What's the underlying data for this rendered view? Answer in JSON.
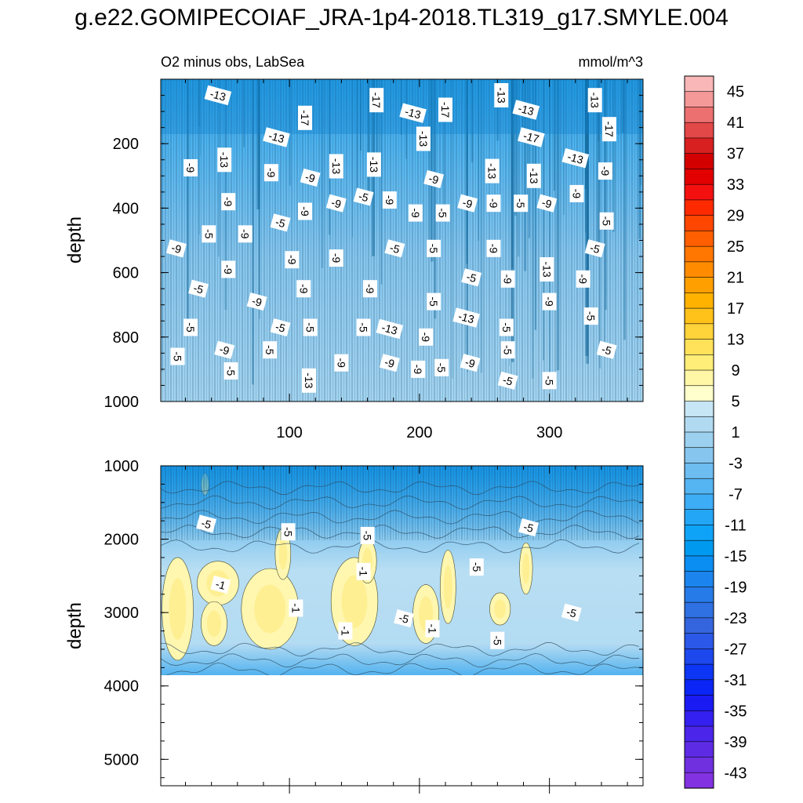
{
  "chart_data": {
    "type": "contour",
    "title": "g.e22.GOMIPECOIAF_JRA-1p4-2018.TL319_g17.SMYLE.004",
    "subtitle_left": "O2 minus obs, LabSea",
    "subtitle_right": "mmol/m^3",
    "panels": [
      {
        "name": "upper",
        "ylabel": "depth",
        "ylim": [
          0,
          1000
        ],
        "xlim": [
          1,
          372
        ],
        "yticks": [
          "200",
          "400",
          "600",
          "800",
          "1000"
        ],
        "xticks": [
          "100",
          "200",
          "300"
        ],
        "contour_labels": [
          {
            "x": 45,
            "y": 50,
            "text": "-13"
          },
          {
            "x": 112,
            "y": 120,
            "text": "-17"
          },
          {
            "x": 167,
            "y": 65,
            "text": "-17"
          },
          {
            "x": 195,
            "y": 105,
            "text": "-13"
          },
          {
            "x": 220,
            "y": 95,
            "text": "-17"
          },
          {
            "x": 263,
            "y": 50,
            "text": "-13"
          },
          {
            "x": 282,
            "y": 95,
            "text": "-13"
          },
          {
            "x": 335,
            "y": 65,
            "text": "-13"
          },
          {
            "x": 346,
            "y": 155,
            "text": "-17"
          },
          {
            "x": 90,
            "y": 180,
            "text": "-13"
          },
          {
            "x": 50,
            "y": 250,
            "text": "-13"
          },
          {
            "x": 203,
            "y": 185,
            "text": "-13"
          },
          {
            "x": 286,
            "y": 180,
            "text": "-17"
          },
          {
            "x": 24,
            "y": 275,
            "text": "-9"
          },
          {
            "x": 86,
            "y": 290,
            "text": "-9"
          },
          {
            "x": 116,
            "y": 305,
            "text": "-9"
          },
          {
            "x": 136,
            "y": 270,
            "text": "-13"
          },
          {
            "x": 165,
            "y": 265,
            "text": "-13"
          },
          {
            "x": 211,
            "y": 310,
            "text": "-9"
          },
          {
            "x": 256,
            "y": 285,
            "text": "-13"
          },
          {
            "x": 288,
            "y": 300,
            "text": "-13"
          },
          {
            "x": 320,
            "y": 245,
            "text": "-13"
          },
          {
            "x": 343,
            "y": 285,
            "text": "-9"
          },
          {
            "x": 53,
            "y": 380,
            "text": "-9"
          },
          {
            "x": 157,
            "y": 365,
            "text": "-5"
          },
          {
            "x": 177,
            "y": 375,
            "text": "-9"
          },
          {
            "x": 112,
            "y": 410,
            "text": "-9"
          },
          {
            "x": 136,
            "y": 385,
            "text": "-9"
          },
          {
            "x": 197,
            "y": 415,
            "text": "-9"
          },
          {
            "x": 218,
            "y": 415,
            "text": "-5"
          },
          {
            "x": 237,
            "y": 385,
            "text": "-9"
          },
          {
            "x": 257,
            "y": 385,
            "text": "-9"
          },
          {
            "x": 278,
            "y": 385,
            "text": "-5"
          },
          {
            "x": 298,
            "y": 385,
            "text": "-9"
          },
          {
            "x": 321,
            "y": 355,
            "text": "-9"
          },
          {
            "x": 344,
            "y": 440,
            "text": "-5"
          },
          {
            "x": 93,
            "y": 445,
            "text": "-5"
          },
          {
            "x": 38,
            "y": 480,
            "text": "-5"
          },
          {
            "x": 66,
            "y": 480,
            "text": "-9"
          },
          {
            "x": 13,
            "y": 525,
            "text": "-9"
          },
          {
            "x": 102,
            "y": 560,
            "text": "-9"
          },
          {
            "x": 136,
            "y": 555,
            "text": "-9"
          },
          {
            "x": 181,
            "y": 525,
            "text": "-5"
          },
          {
            "x": 211,
            "y": 525,
            "text": "-5"
          },
          {
            "x": 257,
            "y": 525,
            "text": "-9"
          },
          {
            "x": 335,
            "y": 525,
            "text": "-5"
          },
          {
            "x": 53,
            "y": 590,
            "text": "-9"
          },
          {
            "x": 298,
            "y": 590,
            "text": "-13"
          },
          {
            "x": 240,
            "y": 615,
            "text": "-5"
          },
          {
            "x": 268,
            "y": 620,
            "text": "-9"
          },
          {
            "x": 326,
            "y": 620,
            "text": "-9"
          },
          {
            "x": 30,
            "y": 650,
            "text": "-5"
          },
          {
            "x": 111,
            "y": 650,
            "text": "-9"
          },
          {
            "x": 162,
            "y": 650,
            "text": "-9"
          },
          {
            "x": 75,
            "y": 690,
            "text": "-9"
          },
          {
            "x": 211,
            "y": 690,
            "text": "-5"
          },
          {
            "x": 300,
            "y": 690,
            "text": "-9"
          },
          {
            "x": 236,
            "y": 740,
            "text": "-13"
          },
          {
            "x": 332,
            "y": 735,
            "text": "-5"
          },
          {
            "x": 24,
            "y": 770,
            "text": "-5"
          },
          {
            "x": 93,
            "y": 770,
            "text": "-5"
          },
          {
            "x": 116,
            "y": 770,
            "text": "-5"
          },
          {
            "x": 157,
            "y": 770,
            "text": "-5"
          },
          {
            "x": 177,
            "y": 775,
            "text": "-13"
          },
          {
            "x": 267,
            "y": 770,
            "text": "-5"
          },
          {
            "x": 205,
            "y": 800,
            "text": "-9"
          },
          {
            "x": 50,
            "y": 840,
            "text": "-9"
          },
          {
            "x": 85,
            "y": 840,
            "text": "-5"
          },
          {
            "x": 268,
            "y": 840,
            "text": "-5"
          },
          {
            "x": 344,
            "y": 840,
            "text": "-5"
          },
          {
            "x": 14,
            "y": 860,
            "text": "-5"
          },
          {
            "x": 140,
            "y": 880,
            "text": "-9"
          },
          {
            "x": 177,
            "y": 880,
            "text": "-9"
          },
          {
            "x": 199,
            "y": 900,
            "text": "-9"
          },
          {
            "x": 217,
            "y": 895,
            "text": "-5"
          },
          {
            "x": 239,
            "y": 880,
            "text": "-9"
          },
          {
            "x": 55,
            "y": 905,
            "text": "-5"
          },
          {
            "x": 115,
            "y": 935,
            "text": "-13"
          },
          {
            "x": 268,
            "y": 935,
            "text": "-5"
          },
          {
            "x": 300,
            "y": 935,
            "text": "-5"
          }
        ]
      },
      {
        "name": "lower",
        "ylabel": "depth",
        "ylim": [
          1000,
          5360
        ],
        "data_bottom": 3860,
        "xlim": [
          1,
          372
        ],
        "yticks": [
          "1000",
          "2000",
          "3000",
          "4000",
          "5000"
        ],
        "contour_labels": [
          {
            "x": 36,
            "y": 1790,
            "text": "-5"
          },
          {
            "x": 99,
            "y": 1900,
            "text": "-5"
          },
          {
            "x": 160,
            "y": 1950,
            "text": "-5"
          },
          {
            "x": 284,
            "y": 1840,
            "text": "-5"
          },
          {
            "x": 244,
            "y": 2380,
            "text": "-5"
          },
          {
            "x": 157,
            "y": 2440,
            "text": "-1"
          },
          {
            "x": 47,
            "y": 2620,
            "text": "-1"
          },
          {
            "x": 105,
            "y": 2940,
            "text": "-1"
          },
          {
            "x": 143,
            "y": 3250,
            "text": "-1"
          },
          {
            "x": 188,
            "y": 3080,
            "text": "-5"
          },
          {
            "x": 210,
            "y": 3220,
            "text": "-1"
          },
          {
            "x": 260,
            "y": 3380,
            "text": "-5"
          },
          {
            "x": 317,
            "y": 3000,
            "text": "-5"
          }
        ]
      }
    ],
    "colorbar": {
      "levels": [
        "45",
        "41",
        "37",
        "33",
        "29",
        "25",
        "21",
        "17",
        "13",
        "9",
        "5",
        "1",
        "-3",
        "-7",
        "-11",
        "-15",
        "-19",
        "-23",
        "-27",
        "-31",
        "-35",
        "-39",
        "-43"
      ],
      "colors": [
        "#f9b7b7",
        "#f49898",
        "#ec7070",
        "#e34848",
        "#d82020",
        "#d30000",
        "#e20000",
        "#f51010",
        "#ff2a00",
        "#ff4600",
        "#ff5f00",
        "#ff7600",
        "#ff8c00",
        "#ffa000",
        "#ffb300",
        "#ffc21a",
        "#ffd33a",
        "#ffe25a",
        "#ffee78",
        "#fff7a6",
        "#ffffcc",
        "#c7e6f5",
        "#b1daf1",
        "#9cd0ef",
        "#86c6ee",
        "#6dbdf0",
        "#55b4f2",
        "#3dadf5",
        "#24a6f7",
        "#0ea3f7",
        "#0099f0",
        "#0a8ef2",
        "#1b85ed",
        "#277be8",
        "#2f70e3",
        "#3565de",
        "#2b58e6",
        "#1d48ee",
        "#0c36f4",
        "#0a25f6",
        "#1a1af3",
        "#3420ef",
        "#4b26ea",
        "#5e2be5",
        "#7030e0",
        "#8232e0"
      ]
    }
  }
}
